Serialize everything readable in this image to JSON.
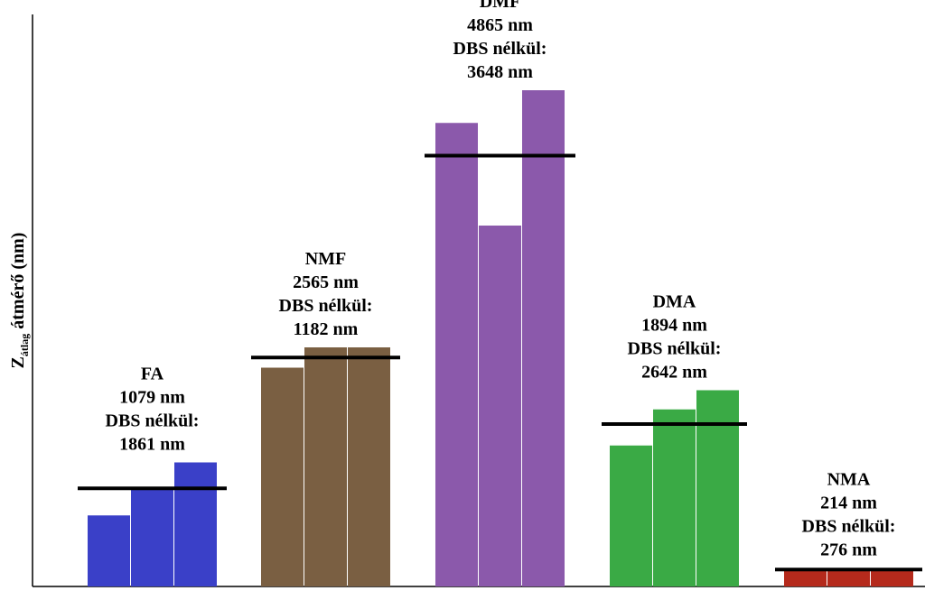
{
  "chart_data": {
    "type": "bar",
    "ylabel": {
      "main": "Z",
      "sub": "átlag",
      "rest": " átmérő (nm)"
    },
    "ylim": [
      0,
      5200
    ],
    "groups": [
      {
        "name": "FA",
        "value_text": "1079 nm",
        "dbs_label": "DBS nélkül:",
        "dbs_text": "1861 nm",
        "mean": 870,
        "bars": [
          630,
          870,
          1100
        ],
        "color": "#3a40c8"
      },
      {
        "name": "NMF",
        "value_text": "2565 nm",
        "dbs_label": "DBS nélkül:",
        "dbs_text": "1182 nm",
        "mean": 2030,
        "bars": [
          1940,
          2120,
          2120
        ],
        "color": "#7a5f42"
      },
      {
        "name": "DMF",
        "value_text": "4865 nm",
        "dbs_label": "DBS nélkül:",
        "dbs_text": "3648 nm",
        "mean": 3820,
        "bars": [
          4110,
          3200,
          4400
        ],
        "color": "#8b59ab"
      },
      {
        "name": "DMA",
        "value_text": "1894 nm",
        "dbs_label": "DBS nélkül:",
        "dbs_text": "2642 nm",
        "mean": 1440,
        "bars": [
          1250,
          1570,
          1740
        ],
        "color": "#3aaa45"
      },
      {
        "name": "NMA",
        "value_text": "214 nm",
        "dbs_label": "DBS nélkül:",
        "dbs_text": "276 nm",
        "mean": 150,
        "bars": [
          140,
          140,
          140
        ],
        "color": "#b52a1c"
      }
    ]
  }
}
